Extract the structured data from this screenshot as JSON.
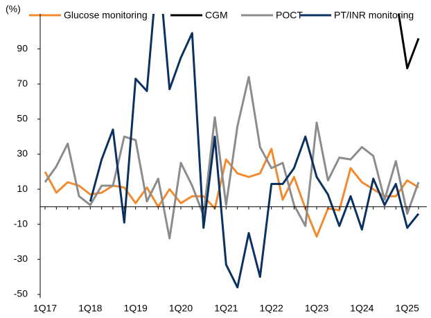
{
  "chart_data": {
    "type": "line",
    "y_unit": "(%)",
    "categories": [
      "1Q17",
      null,
      null,
      null,
      "1Q18",
      null,
      null,
      null,
      "1Q19",
      null,
      null,
      null,
      "1Q20",
      null,
      null,
      null,
      "1Q21",
      null,
      null,
      null,
      "1Q22",
      null,
      null,
      null,
      "1Q23",
      null,
      null,
      null,
      "1Q24",
      null,
      null,
      null,
      "1Q25",
      null
    ],
    "series": [
      {
        "name": "Glucose monitoring",
        "color": "#f28a30",
        "values": [
          20,
          8,
          14,
          12,
          7,
          8,
          12,
          11,
          2,
          11,
          0,
          10,
          2,
          6,
          6,
          -1,
          27,
          19,
          17,
          19,
          33,
          4,
          17,
          -1,
          -17,
          -1,
          -2,
          22,
          14,
          10,
          6,
          6,
          15,
          11
        ]
      },
      {
        "name": "CGM",
        "color": "#000000",
        "values": [
          null,
          null,
          null,
          null,
          null,
          null,
          null,
          null,
          null,
          null,
          null,
          null,
          null,
          null,
          null,
          null,
          null,
          null,
          null,
          null,
          null,
          null,
          null,
          null,
          null,
          null,
          null,
          null,
          null,
          null,
          null,
          120,
          79,
          96
        ]
      },
      {
        "name": "POCT",
        "color": "#8c8c8c",
        "values": [
          14,
          23,
          36,
          6,
          1,
          12,
          12,
          40,
          38,
          3,
          16,
          -18,
          25,
          12,
          -5,
          51,
          1,
          46,
          74,
          34,
          22,
          25,
          1,
          -11,
          48,
          15,
          28,
          27,
          34,
          29,
          4,
          26,
          -4,
          14
        ]
      },
      {
        "name": "PT/INR monitoring",
        "color": "#0a3161",
        "values": [
          null,
          null,
          null,
          null,
          3,
          27,
          44,
          -9,
          73,
          66,
          141,
          67,
          85,
          99,
          -12,
          40,
          -33,
          -46,
          -15,
          -40,
          13,
          13,
          22,
          40,
          17,
          7,
          -11,
          6,
          -13,
          16,
          1,
          13,
          -12,
          -4
        ]
      }
    ],
    "ylim": [
      -52,
      110
    ],
    "yticks": [
      -50,
      -30,
      -10,
      10,
      30,
      50,
      70,
      90
    ]
  }
}
